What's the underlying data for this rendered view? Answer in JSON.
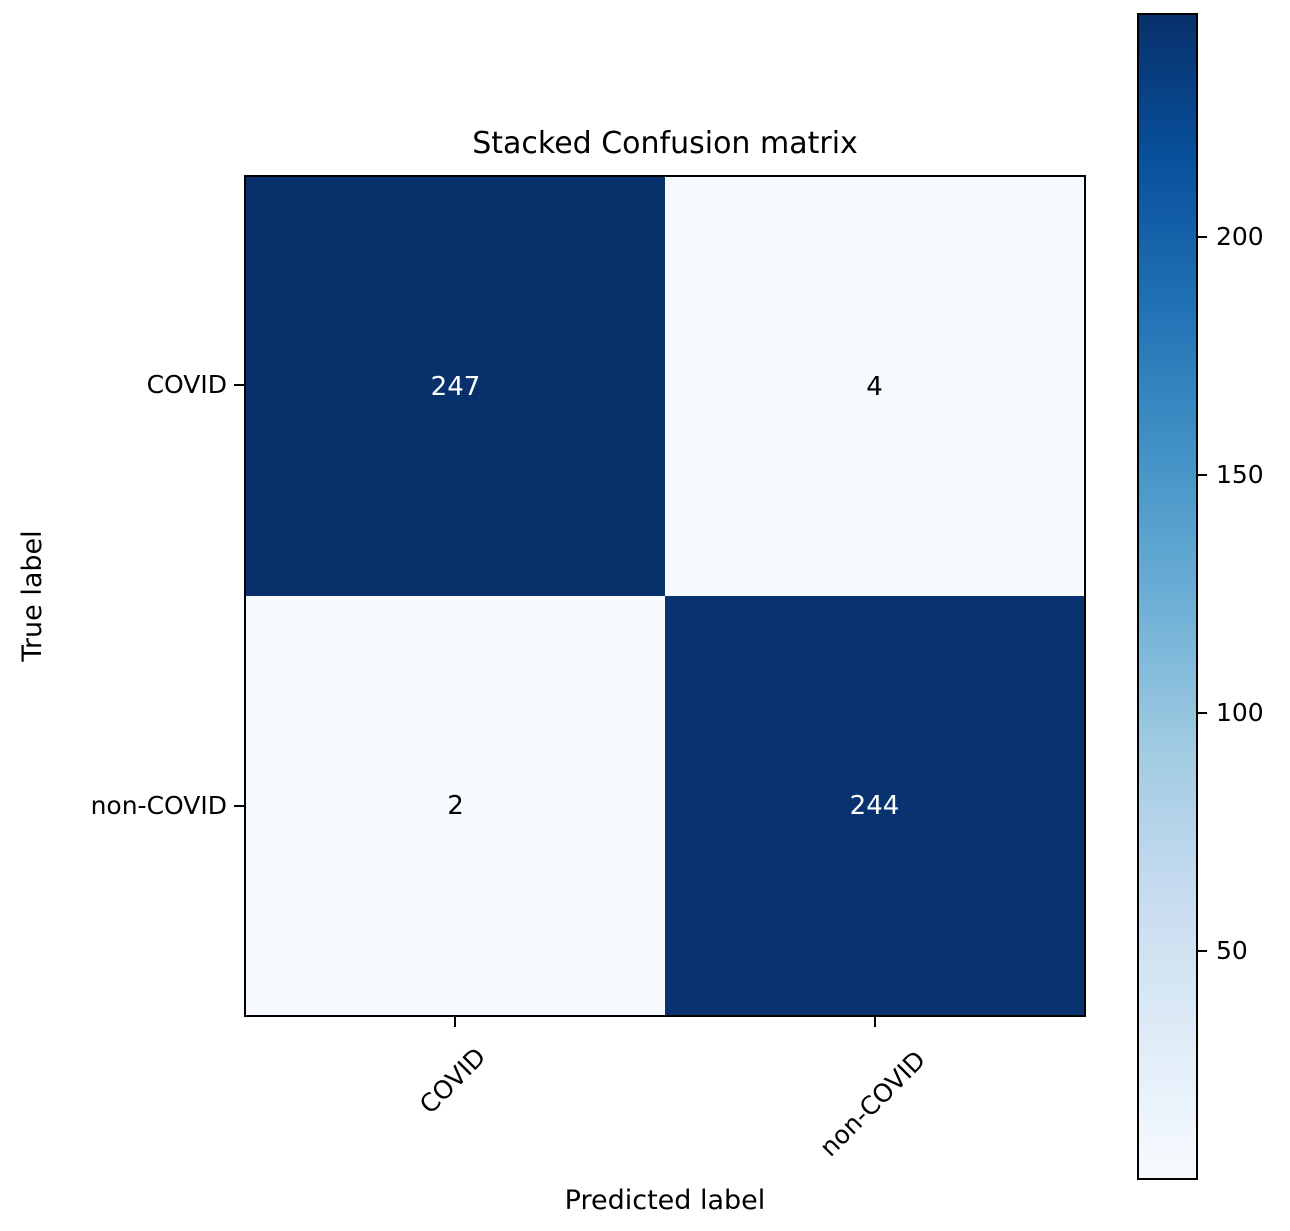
{
  "chart_data": {
    "type": "heatmap",
    "title": "Stacked Confusion matrix",
    "xlabel": "Predicted label",
    "ylabel": "True label",
    "x_tick_labels": [
      "COVID",
      "non-COVID"
    ],
    "y_tick_labels": [
      "COVID",
      "non-COVID"
    ],
    "matrix": [
      [
        247,
        4
      ],
      [
        2,
        244
      ]
    ],
    "matrix_rows_meaning": "rows = true label (COVID, non-COVID), columns = predicted label (COVID, non-COVID)",
    "colormap": "Blues",
    "color_range": {
      "min": 2,
      "max": 247
    },
    "grid": false,
    "colorbar": {
      "position": "right",
      "ticks": [
        200,
        150,
        100,
        50
      ],
      "gradient_stops_top_to_bottom": [
        "#08306b",
        "#08519c",
        "#2171b5",
        "#4292c6",
        "#6baed6",
        "#9ecae1",
        "#c6dbef",
        "#deebf7",
        "#f7fbff"
      ]
    },
    "colors": {
      "cell_true_covid_pred_covid": "#08306b",
      "cell_true_covid_pred_noncovid": "#f5fafe",
      "cell_true_noncovid_pred_covid": "#f7fbff",
      "cell_true_noncovid_pred_noncovid": "#083370",
      "text_on_dark": "#ffffff",
      "text_on_light": "#000000",
      "spine": "#000000",
      "background": "#ffffff"
    }
  }
}
